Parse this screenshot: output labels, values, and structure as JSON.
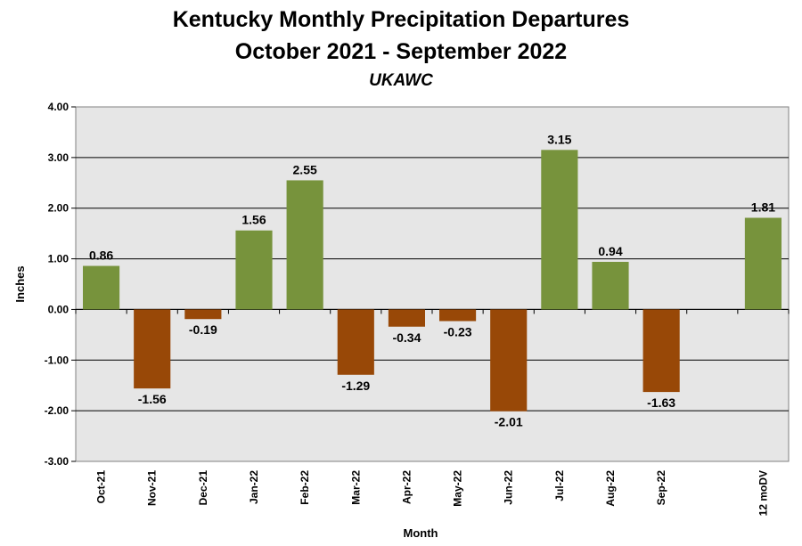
{
  "chart_data": {
    "type": "bar",
    "title": "Kentucky Monthly Precipitation Departures",
    "subtitle": "October 2021 - September 2022",
    "source": "UKAWC",
    "xlabel": "Month",
    "ylabel": "Inches",
    "ylim": [
      -3,
      4
    ],
    "yticks": [
      "4.00",
      "3.00",
      "2.00",
      "1.00",
      "0.00",
      "-1.00",
      "-2.00",
      "-3.00"
    ],
    "grid": true,
    "categories": [
      "Oct-21",
      "Nov-21",
      "Dec-21",
      "Jan-22",
      "Feb-22",
      "Mar-22",
      "Apr-22",
      "May-22",
      "Jun-22",
      "Jul-22",
      "Aug-22",
      "Sep-22",
      "",
      "12 moDV"
    ],
    "values": [
      0.86,
      -1.56,
      -0.19,
      1.56,
      2.55,
      -1.29,
      -0.34,
      -0.23,
      -2.01,
      3.15,
      0.94,
      -1.63,
      null,
      1.81
    ],
    "data_labels": [
      "0.86",
      "-1.56",
      "-0.19",
      "1.56",
      "2.55",
      "-1.29",
      "-0.34",
      "-0.23",
      "-2.01",
      "3.15",
      "0.94",
      "-1.63",
      "",
      "1.81"
    ],
    "colors": {
      "positive": "#77933c",
      "negative": "#984807",
      "plot_bg": "#e6e6e6",
      "grid": "#000000"
    }
  }
}
